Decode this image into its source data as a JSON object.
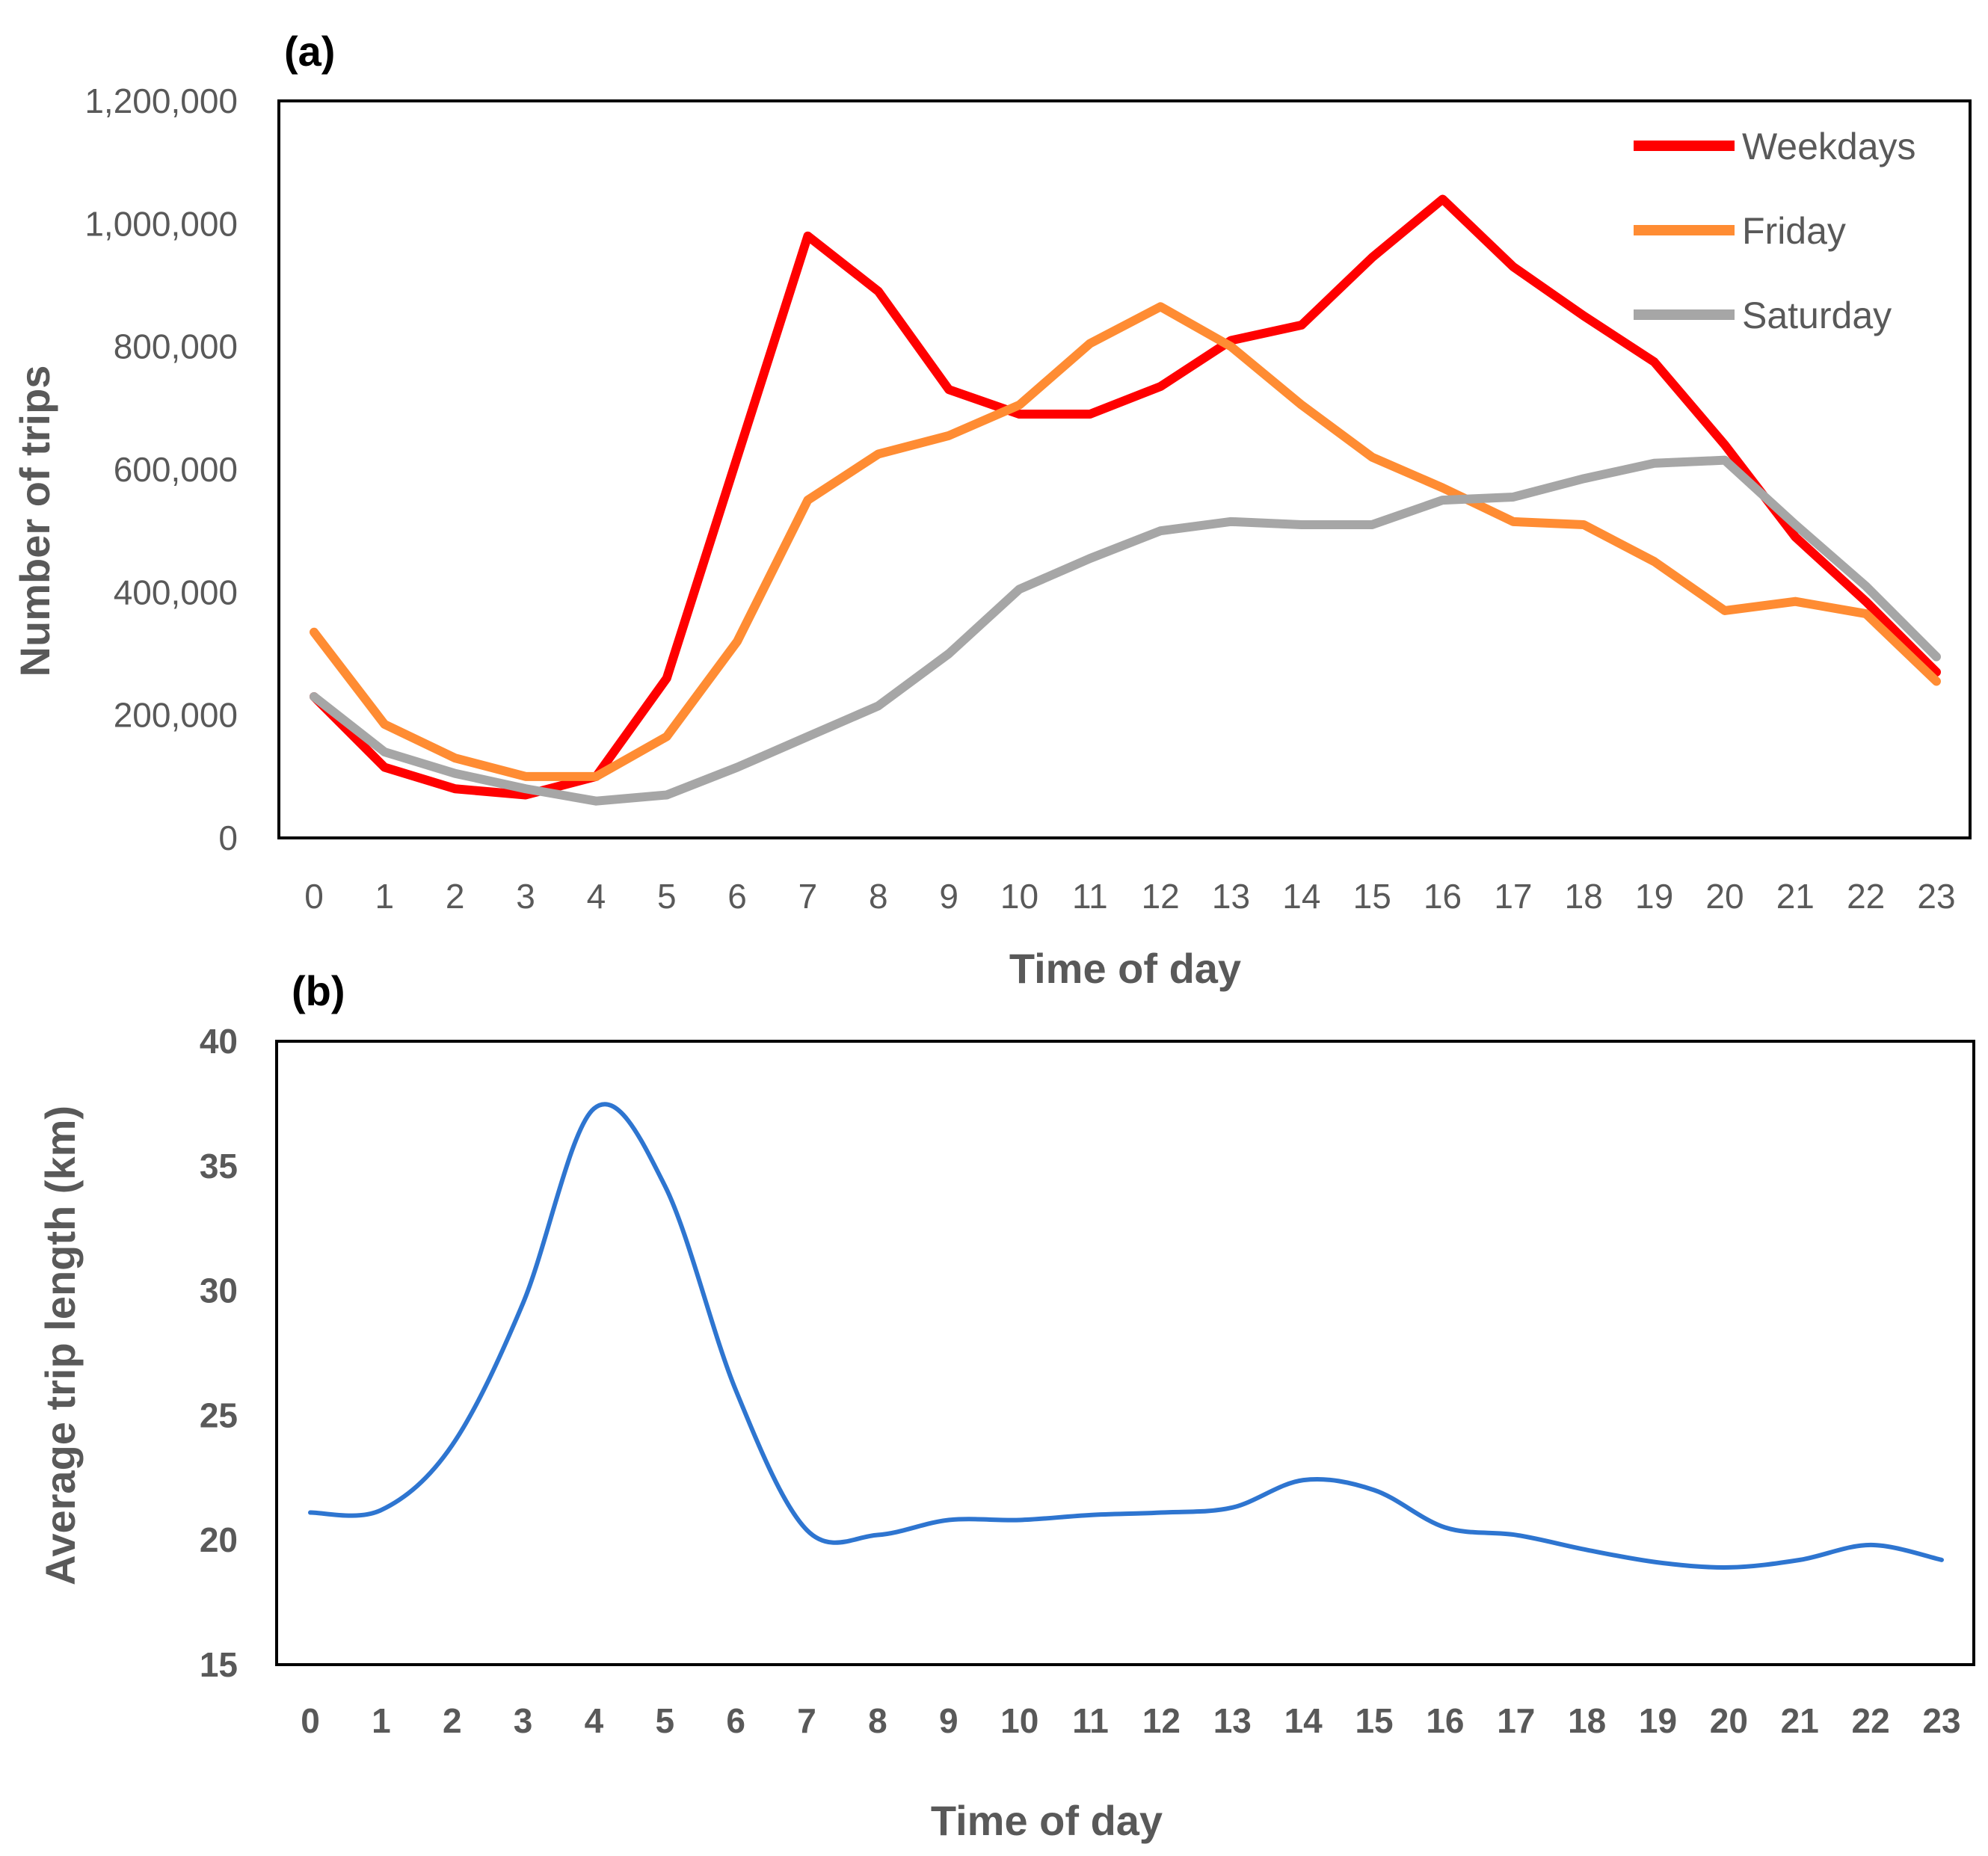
{
  "chart_data": [
    {
      "type": "line",
      "panel_label": "(a)",
      "xlabel": "Time of day",
      "ylabel": "Number of trips",
      "ylim": [
        0,
        1200000
      ],
      "yticks": [
        {
          "value": 0,
          "label": "0"
        },
        {
          "value": 200000,
          "label": "200,000"
        },
        {
          "value": 400000,
          "label": "400,000"
        },
        {
          "value": 600000,
          "label": "600,000"
        },
        {
          "value": 800000,
          "label": "800,000"
        },
        {
          "value": 1000000,
          "label": "1,000,000"
        },
        {
          "value": 1200000,
          "label": "1,200,000"
        }
      ],
      "x": [
        0,
        1,
        2,
        3,
        4,
        5,
        6,
        7,
        8,
        9,
        10,
        11,
        12,
        13,
        14,
        15,
        16,
        17,
        18,
        19,
        20,
        21,
        22,
        23
      ],
      "x_labels": [
        "0",
        "1",
        "2",
        "3",
        "4",
        "5",
        "6",
        "7",
        "8",
        "9",
        "10",
        "11",
        "12",
        "13",
        "14",
        "15",
        "16",
        "17",
        "18",
        "19",
        "20",
        "21",
        "22",
        "23"
      ],
      "legend_position": "top-right",
      "grid": false,
      "series": [
        {
          "name": "Weekdays",
          "color": "#ff0000",
          "values": [
            230000,
            115000,
            80000,
            70000,
            100000,
            260000,
            620000,
            980000,
            890000,
            730000,
            690000,
            690000,
            735000,
            810000,
            835000,
            945000,
            1040000,
            930000,
            850000,
            775000,
            640000,
            490000,
            385000,
            270000
          ]
        },
        {
          "name": "Friday",
          "color": "#ff8c33",
          "values": [
            335000,
            185000,
            130000,
            100000,
            100000,
            165000,
            320000,
            550000,
            625000,
            655000,
            705000,
            805000,
            865000,
            800000,
            705000,
            620000,
            570000,
            515000,
            510000,
            450000,
            370000,
            385000,
            365000,
            255000
          ]
        },
        {
          "name": "Saturday",
          "color": "#a6a6a6",
          "values": [
            230000,
            140000,
            105000,
            80000,
            60000,
            70000,
            115000,
            165000,
            215000,
            300000,
            405000,
            455000,
            500000,
            515000,
            510000,
            510000,
            550000,
            555000,
            585000,
            610000,
            615000,
            510000,
            410000,
            295000
          ]
        }
      ]
    },
    {
      "type": "line",
      "panel_label": "(b)",
      "xlabel": "Time of day",
      "ylabel": "Average trip length (km)",
      "ylim": [
        15,
        40
      ],
      "yticks": [
        {
          "value": 15,
          "label": "15"
        },
        {
          "value": 20,
          "label": "20"
        },
        {
          "value": 25,
          "label": "25"
        },
        {
          "value": 30,
          "label": "30"
        },
        {
          "value": 35,
          "label": "35"
        },
        {
          "value": 40,
          "label": "40"
        }
      ],
      "x": [
        0,
        1,
        2,
        3,
        4,
        5,
        6,
        7,
        8,
        9,
        10,
        11,
        12,
        13,
        14,
        15,
        16,
        17,
        18,
        19,
        20,
        21,
        22,
        23
      ],
      "x_labels": [
        "0",
        "1",
        "2",
        "3",
        "4",
        "5",
        "6",
        "7",
        "8",
        "9",
        "10",
        "11",
        "12",
        "13",
        "14",
        "15",
        "16",
        "17",
        "18",
        "19",
        "20",
        "21",
        "22",
        "23"
      ],
      "grid": false,
      "smooth": true,
      "series": [
        {
          "color": "#2e75d0",
          "values": [
            21.1,
            21.2,
            23.8,
            29.5,
            37.3,
            34.2,
            26.0,
            20.4,
            20.2,
            20.8,
            20.8,
            21.0,
            21.1,
            21.3,
            22.4,
            22.0,
            20.5,
            20.2,
            19.6,
            19.1,
            18.9,
            19.2,
            19.8,
            19.2
          ]
        }
      ]
    }
  ]
}
